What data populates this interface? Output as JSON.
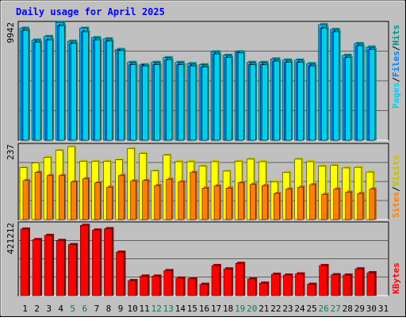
{
  "title": "Daily usage for April 2025",
  "colors": {
    "background": "#C0C0C0",
    "title": "#0000FF",
    "hits": "#00C0F0",
    "hits_shade": "#009090",
    "files": "#0080FF",
    "files_shade": "#0000A0",
    "pages": "#00D0F0",
    "visits": "#FFFF00",
    "visits_shade": "#C0C000",
    "sites": "#FF8000",
    "sites_shade": "#C06000",
    "kbytes": "#FF0000",
    "kbytes_shade": "#A00000",
    "weekend_label": "#00805C"
  },
  "chart_data": [
    {
      "type": "bar",
      "panel": "hits-files-pages",
      "ymax_label": "9942",
      "ylim": [
        0,
        9942
      ],
      "legend": [
        "Pages",
        "/",
        "Files",
        "/",
        "Hits"
      ],
      "categories": [
        "1",
        "2",
        "3",
        "4",
        "5",
        "6",
        "7",
        "8",
        "9",
        "10",
        "11",
        "12",
        "13",
        "14",
        "15",
        "16",
        "17",
        "18",
        "19",
        "20",
        "21",
        "22",
        "23",
        "24",
        "25",
        "26",
        "27",
        "28",
        "29",
        "30",
        "31"
      ],
      "weekend_days": [
        "5",
        "6",
        "12",
        "13",
        "19",
        "20",
        "26",
        "27"
      ],
      "series": [
        {
          "name": "Hits",
          "values": [
            9500,
            8500,
            8800,
            10000,
            8400,
            9500,
            8700,
            8600,
            7700,
            6600,
            6400,
            6600,
            7000,
            6600,
            6500,
            6400,
            7500,
            7200,
            7500,
            6600,
            6600,
            6900,
            6800,
            6800,
            6500,
            9800,
            9400,
            7200,
            8200,
            7900,
            0
          ]
        },
        {
          "name": "Files",
          "values": [
            9300,
            8300,
            8500,
            9700,
            8200,
            9200,
            8500,
            8400,
            7600,
            6400,
            6300,
            6400,
            6800,
            6400,
            6300,
            6200,
            7300,
            7000,
            7400,
            6400,
            6400,
            6700,
            6600,
            6600,
            6300,
            9500,
            9200,
            7000,
            8000,
            7700,
            0
          ]
        },
        {
          "name": "Pages",
          "values": [
            9300,
            8300,
            8500,
            9700,
            8200,
            9200,
            8500,
            8400,
            7600,
            6400,
            6300,
            6400,
            6800,
            6400,
            6300,
            6200,
            7300,
            7000,
            7400,
            6400,
            6400,
            6700,
            6600,
            6600,
            6300,
            9500,
            9200,
            7000,
            8000,
            7700,
            0
          ]
        }
      ]
    },
    {
      "type": "bar",
      "panel": "visits-sites",
      "ymax_label": "237",
      "ylim": [
        0,
        237
      ],
      "legend": [
        "Sites",
        "/",
        "Visits"
      ],
      "categories": [
        "1",
        "2",
        "3",
        "4",
        "5",
        "6",
        "7",
        "8",
        "9",
        "10",
        "11",
        "12",
        "13",
        "14",
        "15",
        "16",
        "17",
        "18",
        "19",
        "20",
        "21",
        "22",
        "23",
        "24",
        "25",
        "26",
        "27",
        "28",
        "29",
        "30",
        "31"
      ],
      "series": [
        {
          "name": "Visits",
          "values": [
            165,
            180,
            198,
            220,
            232,
            185,
            185,
            185,
            190,
            226,
            210,
            155,
            205,
            184,
            184,
            170,
            184,
            154,
            185,
            192,
            184,
            120,
            150,
            192,
            184,
            170,
            172,
            164,
            166,
            151,
            0
          ]
        },
        {
          "name": "Sites",
          "values": [
            124,
            150,
            140,
            140,
            120,
            130,
            117,
            103,
            140,
            123,
            124,
            108,
            128,
            120,
            150,
            100,
            107,
            100,
            117,
            112,
            108,
            83,
            97,
            103,
            111,
            80,
            97,
            87,
            83,
            97,
            0
          ]
        }
      ]
    },
    {
      "type": "bar",
      "panel": "kbytes",
      "ymax_label": "421212",
      "ylim": [
        0,
        421212
      ],
      "legend": [
        "KBytes"
      ],
      "categories": [
        "1",
        "2",
        "3",
        "4",
        "5",
        "6",
        "7",
        "8",
        "9",
        "10",
        "11",
        "12",
        "13",
        "14",
        "15",
        "16",
        "17",
        "18",
        "19",
        "20",
        "21",
        "22",
        "23",
        "24",
        "25",
        "26",
        "27",
        "28",
        "29",
        "30",
        "31"
      ],
      "series": [
        {
          "name": "KBytes",
          "values": [
            398000,
            335000,
            360000,
            330000,
            305000,
            420000,
            392000,
            400000,
            260000,
            90000,
            117000,
            117000,
            150000,
            105000,
            102000,
            68000,
            180000,
            160000,
            193000,
            100000,
            75000,
            128000,
            123000,
            130000,
            68000,
            180000,
            125000,
            123000,
            160000,
            137000,
            0
          ]
        }
      ]
    }
  ]
}
